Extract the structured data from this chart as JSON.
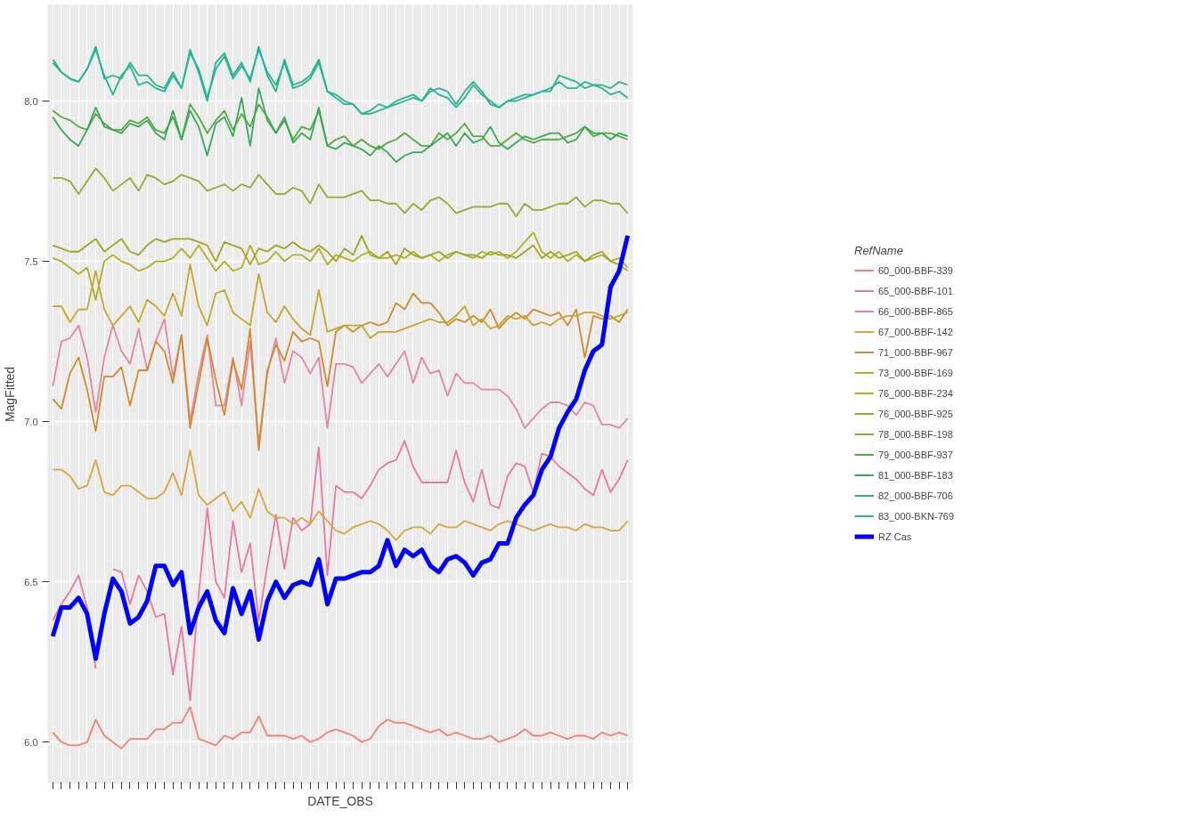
{
  "chart_data": {
    "type": "line",
    "xlabel": "DATE_OBS",
    "ylabel": "MagFitted",
    "legend_title": "RefName",
    "legend": "right",
    "grid": true,
    "categories": [
      null,
      null,
      null,
      null,
      null,
      null,
      null,
      null,
      null,
      null,
      null,
      null,
      null,
      null,
      null,
      null,
      null,
      null,
      null,
      null,
      null,
      null,
      null,
      null,
      null,
      null,
      null,
      null,
      null,
      null,
      null,
      null,
      null,
      null,
      null,
      null,
      null,
      null,
      null,
      null,
      null,
      null,
      null,
      null,
      null,
      null,
      null,
      null,
      null,
      null,
      null,
      null,
      null,
      null,
      null,
      null,
      null,
      null,
      null,
      null,
      null,
      null,
      null,
      null,
      null,
      null,
      null,
      null
    ],
    "ylim": [
      5.87,
      8.3
    ],
    "yticks": [
      {
        "value": 6,
        "label": "6.0"
      },
      {
        "value": 6.5,
        "label": "6.5"
      },
      {
        "value": 7,
        "label": "7.0"
      },
      {
        "value": 7.5,
        "label": "7.5"
      },
      {
        "value": 8,
        "label": "8.0"
      }
    ],
    "series": [
      {
        "name": "60_000-BBF-339",
        "color": "#f0826e",
        "values": [
          6.03,
          6.0,
          5.99,
          5.99,
          6.0,
          6.07,
          6.02,
          6.0,
          5.98,
          6.01,
          6.01,
          6.01,
          6.04,
          6.04,
          6.06,
          6.06,
          6.11,
          6.01,
          6.0,
          5.99,
          6.02,
          6.01,
          6.03,
          6.03,
          6.08,
          6.02,
          6.02,
          6.02,
          6.01,
          6.02,
          6.0,
          6.01,
          6.03,
          6.04,
          6.03,
          6.02,
          6.0,
          6.01,
          6.05,
          6.07,
          6.06,
          6.06,
          6.05,
          6.04,
          6.03,
          6.04,
          6.02,
          6.03,
          6.02,
          6.01,
          6.01,
          6.02,
          6.0,
          6.01,
          6.02,
          6.04,
          6.02,
          6.02,
          6.03,
          6.02,
          6.01,
          6.02,
          6.02,
          6.01,
          6.03,
          6.02,
          6.03,
          6.02
        ]
      },
      {
        "name": "65_000-BBF-101",
        "color": "#e8799a",
        "values": [
          6.38,
          6.43,
          6.47,
          6.52,
          6.42,
          6.23,
          null,
          6.54,
          6.53,
          6.43,
          6.52,
          6.47,
          6.39,
          6.4,
          6.21,
          6.36,
          6.13,
          6.46,
          6.73,
          6.5,
          6.45,
          6.69,
          6.53,
          6.62,
          6.38,
          6.55,
          6.71,
          6.54,
          6.7,
          6.66,
          6.68,
          6.92,
          6.52,
          6.8,
          6.78,
          6.78,
          6.76,
          6.8,
          6.85,
          6.87,
          6.88,
          6.94,
          6.86,
          6.81,
          6.81,
          6.81,
          6.81,
          6.91,
          6.81,
          6.75,
          6.85,
          6.74,
          6.73,
          6.83,
          6.87,
          6.86,
          6.78,
          6.9,
          6.89,
          6.86,
          6.84,
          6.82,
          6.79,
          6.77,
          6.85,
          6.78,
          6.82,
          6.88
        ]
      },
      {
        "name": "66_000-BBF-865",
        "color": "#e4869e",
        "values": [
          7.11,
          7.25,
          7.26,
          7.3,
          7.2,
          7.03,
          7.2,
          7.3,
          7.22,
          7.18,
          7.29,
          7.16,
          7.25,
          7.32,
          7.14,
          7.27,
          7.0,
          7.15,
          7.27,
          7.05,
          7.05,
          7.2,
          7.05,
          7.25,
          6.93,
          7.15,
          7.26,
          7.12,
          7.22,
          7.2,
          7.15,
          7.2,
          6.98,
          7.18,
          7.18,
          7.17,
          7.12,
          7.15,
          7.18,
          7.14,
          7.18,
          7.22,
          7.12,
          7.2,
          7.15,
          7.16,
          7.08,
          7.15,
          7.12,
          7.12,
          7.1,
          7.1,
          7.1,
          7.08,
          7.04,
          6.98,
          7.01,
          7.04,
          7.06,
          7.06,
          7.05,
          7.02,
          7.06,
          7.05,
          6.99,
          6.99,
          6.98,
          7.01
        ]
      },
      {
        "name": "67_000-BBF-142",
        "color": "#d9a441",
        "values": [
          6.85,
          6.85,
          6.83,
          6.79,
          6.8,
          6.88,
          6.78,
          6.77,
          6.8,
          6.8,
          6.78,
          6.76,
          6.76,
          6.78,
          6.84,
          6.77,
          6.91,
          6.77,
          6.74,
          6.76,
          6.78,
          6.72,
          6.75,
          6.7,
          6.79,
          6.72,
          6.7,
          6.7,
          6.68,
          6.7,
          6.68,
          6.72,
          6.69,
          6.66,
          6.65,
          6.67,
          6.68,
          6.69,
          6.68,
          6.66,
          6.63,
          6.66,
          6.67,
          6.67,
          6.65,
          6.68,
          6.67,
          6.67,
          6.69,
          6.68,
          6.67,
          6.66,
          6.68,
          6.69,
          6.68,
          6.67,
          6.66,
          6.67,
          6.68,
          6.67,
          6.67,
          6.66,
          6.68,
          6.67,
          6.67,
          6.66,
          6.66,
          6.69
        ]
      },
      {
        "name": "71_000-BBF-967",
        "color": "#d18a2c",
        "values": [
          7.07,
          7.04,
          7.15,
          7.2,
          7.1,
          6.97,
          7.14,
          7.14,
          7.17,
          7.05,
          7.16,
          7.16,
          7.25,
          7.22,
          7.12,
          7.27,
          6.98,
          7.12,
          7.26,
          7.13,
          7.02,
          7.19,
          7.1,
          7.29,
          6.91,
          7.16,
          7.24,
          7.19,
          7.28,
          7.25,
          7.26,
          7.25,
          7.11,
          7.28,
          7.3,
          7.28,
          7.3,
          7.31,
          7.3,
          7.31,
          7.37,
          7.35,
          7.4,
          7.37,
          7.37,
          7.34,
          7.3,
          7.32,
          7.31,
          7.33,
          7.31,
          7.35,
          7.29,
          7.32,
          7.34,
          7.32,
          7.35,
          7.34,
          7.33,
          7.34,
          7.3,
          7.35,
          7.2,
          7.33,
          7.32,
          7.33,
          7.31,
          7.35
        ]
      },
      {
        "name": "73_000-BBF-169",
        "color": "#c6a62a",
        "values": [
          7.36,
          7.36,
          7.31,
          7.35,
          7.35,
          7.47,
          7.35,
          7.3,
          7.33,
          7.36,
          7.31,
          7.38,
          7.36,
          7.33,
          7.4,
          7.33,
          7.49,
          7.36,
          7.3,
          7.4,
          7.41,
          7.34,
          7.32,
          7.3,
          7.46,
          7.34,
          7.31,
          7.36,
          7.32,
          7.29,
          7.27,
          7.41,
          7.28,
          7.29,
          7.3,
          7.3,
          7.3,
          7.26,
          7.28,
          7.28,
          7.28,
          7.29,
          7.3,
          7.31,
          7.32,
          7.31,
          7.31,
          7.33,
          7.36,
          7.3,
          7.32,
          7.29,
          7.3,
          7.33,
          7.32,
          7.33,
          7.3,
          7.31,
          7.3,
          7.32,
          7.33,
          7.33,
          7.34,
          7.34,
          7.33,
          7.32,
          7.33,
          7.34
        ]
      },
      {
        "name": "76_000-BBF-234",
        "color": "#b5ad26",
        "values": [
          7.51,
          7.5,
          7.48,
          7.46,
          7.48,
          7.38,
          7.5,
          7.52,
          7.5,
          7.49,
          7.47,
          7.48,
          7.5,
          7.5,
          7.51,
          7.54,
          7.51,
          7.55,
          7.51,
          7.47,
          7.5,
          7.47,
          7.48,
          7.55,
          7.49,
          7.5,
          7.53,
          7.5,
          7.52,
          7.52,
          7.5,
          7.54,
          7.49,
          7.52,
          7.51,
          7.5,
          7.52,
          7.53,
          7.51,
          7.51,
          7.52,
          7.51,
          7.53,
          7.51,
          7.52,
          7.5,
          7.52,
          7.53,
          7.52,
          7.51,
          7.53,
          7.52,
          7.53,
          7.51,
          7.53,
          7.56,
          7.59,
          7.53,
          7.51,
          7.53,
          7.5,
          7.52,
          7.5,
          7.51,
          7.52,
          7.5,
          7.51,
          7.48
        ]
      },
      {
        "name": "76_000-BBF-925",
        "color": "#a3a520",
        "values": [
          7.55,
          7.54,
          7.53,
          7.53,
          7.55,
          7.57,
          7.53,
          7.55,
          7.57,
          7.53,
          7.52,
          7.55,
          7.57,
          7.56,
          7.57,
          7.57,
          7.57,
          7.56,
          7.55,
          7.5,
          7.56,
          7.55,
          7.54,
          7.49,
          7.54,
          7.53,
          7.55,
          7.54,
          7.56,
          7.54,
          7.53,
          7.55,
          7.53,
          7.5,
          7.54,
          7.52,
          7.58,
          7.52,
          7.51,
          7.53,
          7.49,
          7.54,
          7.52,
          7.51,
          7.52,
          7.53,
          7.51,
          7.53,
          7.52,
          7.52,
          7.51,
          7.53,
          7.52,
          7.52,
          7.51,
          7.53,
          7.55,
          7.51,
          7.53,
          7.51,
          7.52,
          7.53,
          7.5,
          7.52,
          7.53,
          7.5,
          7.49,
          7.47
        ]
      },
      {
        "name": "78_000-BBF-198",
        "color": "#8fad30",
        "values": [
          7.76,
          7.76,
          7.75,
          7.71,
          7.75,
          7.79,
          7.76,
          7.72,
          7.74,
          7.76,
          7.72,
          7.77,
          7.76,
          7.74,
          7.75,
          7.77,
          7.76,
          7.75,
          7.72,
          7.73,
          7.74,
          7.72,
          7.74,
          7.73,
          7.77,
          7.74,
          7.71,
          7.71,
          7.73,
          7.72,
          7.68,
          7.74,
          7.7,
          7.7,
          7.7,
          7.71,
          7.72,
          7.69,
          7.69,
          7.68,
          7.68,
          7.65,
          7.68,
          7.66,
          7.69,
          7.7,
          7.68,
          7.65,
          7.66,
          7.67,
          7.67,
          7.67,
          7.68,
          7.68,
          7.64,
          7.68,
          7.66,
          7.66,
          7.67,
          7.68,
          7.68,
          7.7,
          7.67,
          7.69,
          7.69,
          7.68,
          7.68,
          7.65
        ]
      },
      {
        "name": "79_000-BBF-937",
        "color": "#5aa83e",
        "values": [
          7.97,
          7.95,
          7.94,
          7.92,
          7.91,
          7.96,
          7.93,
          7.91,
          7.91,
          7.94,
          7.93,
          7.95,
          7.91,
          7.9,
          7.95,
          7.88,
          7.99,
          7.95,
          7.9,
          7.94,
          7.97,
          7.91,
          7.96,
          7.92,
          7.99,
          7.95,
          7.9,
          7.94,
          7.88,
          7.92,
          7.91,
          7.97,
          7.86,
          7.88,
          7.89,
          7.86,
          7.88,
          7.86,
          7.85,
          7.87,
          7.88,
          7.9,
          7.88,
          7.86,
          7.86,
          7.9,
          7.88,
          7.9,
          7.93,
          7.89,
          7.89,
          7.86,
          7.86,
          7.88,
          7.9,
          7.88,
          7.87,
          7.88,
          7.88,
          7.88,
          7.89,
          7.9,
          7.92,
          7.89,
          7.9,
          7.9,
          7.89,
          7.88
        ]
      },
      {
        "name": "81_000-BBF-183",
        "color": "#38a85a",
        "values": [
          7.95,
          7.91,
          7.88,
          7.86,
          7.91,
          7.98,
          7.92,
          7.91,
          7.9,
          7.93,
          7.92,
          7.94,
          7.9,
          7.88,
          7.97,
          7.88,
          7.97,
          7.92,
          7.83,
          7.93,
          7.95,
          7.89,
          8.01,
          7.86,
          8.04,
          7.94,
          7.9,
          7.95,
          7.87,
          7.9,
          7.88,
          7.98,
          7.86,
          7.85,
          7.87,
          7.86,
          7.85,
          7.83,
          7.86,
          7.84,
          7.81,
          7.83,
          7.84,
          7.84,
          7.86,
          7.88,
          7.9,
          7.86,
          7.9,
          7.87,
          7.88,
          7.92,
          7.87,
          7.85,
          7.87,
          7.89,
          7.88,
          7.89,
          7.9,
          7.9,
          7.87,
          7.88,
          7.92,
          7.9,
          7.9,
          7.88,
          7.9,
          7.89
        ]
      },
      {
        "name": "82_000-BBF-706",
        "color": "#2bb38a",
        "values": [
          8.13,
          8.09,
          8.07,
          8.06,
          8.1,
          8.17,
          8.07,
          8.08,
          8.07,
          8.12,
          8.08,
          8.08,
          8.05,
          8.04,
          8.09,
          8.04,
          8.16,
          8.09,
          8.0,
          8.12,
          8.15,
          8.08,
          8.12,
          8.06,
          8.17,
          8.08,
          8.03,
          8.13,
          8.05,
          8.06,
          8.08,
          8.13,
          8.03,
          8.02,
          8.0,
          7.99,
          7.96,
          7.97,
          7.99,
          7.98,
          8.0,
          8.01,
          8.02,
          8.0,
          8.03,
          8.04,
          8.03,
          7.99,
          8.03,
          8.06,
          8.03,
          7.99,
          7.98,
          8.0,
          8.0,
          8.01,
          8.02,
          8.03,
          8.03,
          8.08,
          8.07,
          8.06,
          8.04,
          8.05,
          8.05,
          8.04,
          8.06,
          8.05
        ]
      },
      {
        "name": "83_000-BKN-769",
        "color": "#22b59c",
        "values": [
          8.12,
          8.09,
          8.07,
          8.06,
          8.1,
          8.16,
          8.08,
          8.02,
          8.08,
          8.11,
          8.05,
          8.06,
          8.04,
          8.03,
          8.08,
          8.04,
          8.15,
          8.1,
          8.01,
          8.1,
          8.14,
          8.07,
          8.11,
          8.07,
          8.16,
          8.09,
          8.05,
          8.12,
          8.04,
          8.05,
          8.07,
          8.12,
          8.03,
          8.01,
          7.99,
          7.99,
          7.96,
          7.96,
          7.97,
          7.98,
          7.99,
          8.0,
          8.01,
          8.0,
          8.04,
          8.02,
          8.01,
          7.98,
          8.01,
          8.05,
          8.02,
          8.0,
          7.98,
          8.0,
          8.01,
          8.02,
          8.02,
          8.03,
          8.04,
          8.06,
          8.04,
          8.04,
          8.06,
          8.05,
          8.04,
          8.02,
          8.03,
          8.01
        ]
      },
      {
        "name": "RZ Cas",
        "color": "#0000ff",
        "values": [
          6.33,
          6.42,
          6.42,
          6.45,
          6.4,
          6.26,
          6.4,
          6.51,
          6.47,
          6.37,
          6.39,
          6.44,
          6.55,
          6.55,
          6.49,
          6.53,
          6.34,
          6.42,
          6.47,
          6.38,
          6.34,
          6.48,
          6.4,
          6.47,
          6.32,
          6.44,
          6.5,
          6.45,
          6.49,
          6.5,
          6.49,
          6.57,
          6.43,
          6.51,
          6.51,
          6.52,
          6.53,
          6.53,
          6.55,
          6.63,
          6.55,
          6.6,
          6.58,
          6.6,
          6.55,
          6.53,
          6.57,
          6.58,
          6.56,
          6.52,
          6.56,
          6.57,
          6.62,
          6.62,
          6.7,
          6.74,
          6.77,
          6.85,
          6.89,
          6.98,
          7.03,
          7.07,
          7.16,
          7.22,
          7.24,
          7.42,
          7.47,
          7.58
        ]
      }
    ]
  }
}
